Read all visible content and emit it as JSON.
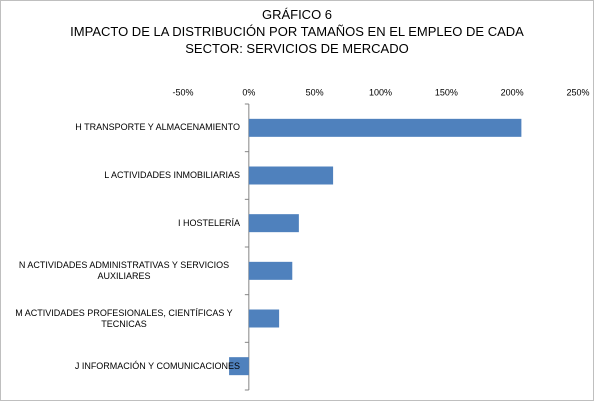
{
  "chart_data": {
    "type": "bar",
    "orientation": "horizontal",
    "title": "GRÁFICO 6",
    "subtitle": [
      "IMPACTO DE LA DISTRIBUCIÓN POR TAMAÑOS EN EL EMPLEO DE CADA",
      "SECTOR: SERVICIOS DE MERCADO"
    ],
    "categories": [
      "H TRANSPORTE Y ALMACENAMIENTO",
      "L ACTIVIDADES INMOBILIARIAS",
      "I HOSTELERÍA",
      "N ACTIVIDADES ADMINISTRATIVAS Y SERVICIOS AUXILIARES",
      "M ACTIVIDADES PROFESIONALES, CIENTÍFICAS Y TECNICAS",
      "J INFORMACIÓN Y COMUNICACIONES"
    ],
    "values": [
      207,
      64,
      38,
      33,
      23,
      -15
    ],
    "color": "#4f81bd",
    "xlim": [
      -50,
      250
    ],
    "xticks": [
      {
        "value": -50,
        "label": "-50%"
      },
      {
        "value": 0,
        "label": "0%"
      },
      {
        "value": 50,
        "label": "50%"
      },
      {
        "value": 100,
        "label": "100%"
      },
      {
        "value": 150,
        "label": "150%"
      },
      {
        "value": 200,
        "label": "200%"
      },
      {
        "value": 250,
        "label": "250%"
      }
    ],
    "grid": false
  }
}
